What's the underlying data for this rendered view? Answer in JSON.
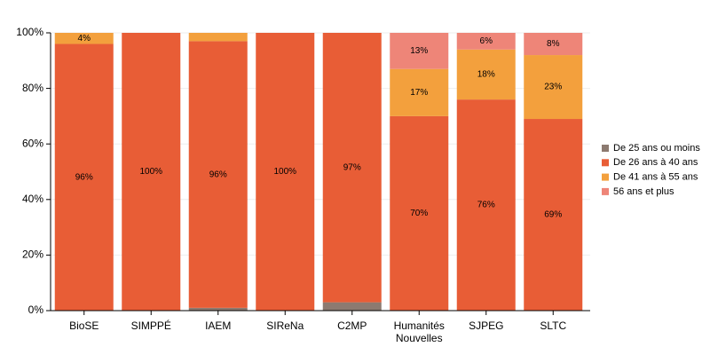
{
  "chart_data": {
    "type": "stacked_bar_percent",
    "categories": [
      "BioSE",
      "SIMPPÉ",
      "IAEM",
      "SIReNa",
      "C2MP",
      "Humanités Nouvelles",
      "SJPEG",
      "SLTC"
    ],
    "series": [
      {
        "name": "De 25 ans ou moins",
        "color": "#8c7a70",
        "values": [
          0,
          0,
          1,
          0,
          3,
          0,
          0,
          0
        ],
        "value_labels": [
          null,
          null,
          null,
          null,
          null,
          null,
          null,
          null
        ]
      },
      {
        "name": "De 26 ans à 40 ans",
        "color": "#e85d36",
        "values": [
          96,
          100,
          96,
          100,
          97,
          70,
          76,
          69
        ],
        "value_labels": [
          "96%",
          "100%",
          "96%",
          "100%",
          "97%",
          "70%",
          "76%",
          "69%"
        ]
      },
      {
        "name": "De 41 ans à 55 ans",
        "color": "#f3a03d",
        "values": [
          4,
          0,
          3,
          0,
          0,
          17,
          18,
          23
        ],
        "value_labels": [
          "4%",
          null,
          null,
          null,
          null,
          "17%",
          "18%",
          "23%"
        ]
      },
      {
        "name": "56 ans et plus",
        "color": "#ee8578",
        "values": [
          0,
          0,
          0,
          0,
          0,
          13,
          6,
          8
        ],
        "value_labels": [
          null,
          null,
          null,
          null,
          null,
          "13%",
          "6%",
          "8%"
        ]
      }
    ],
    "ylim": [
      0,
      100
    ],
    "yticks": [
      {
        "value": 0,
        "label": "0%"
      },
      {
        "value": 20,
        "label": "20%"
      },
      {
        "value": 40,
        "label": "40%"
      },
      {
        "value": 60,
        "label": "60%"
      },
      {
        "value": 80,
        "label": "80%"
      },
      {
        "value": 100,
        "label": "100%"
      }
    ],
    "grid": true,
    "legend": "right"
  }
}
